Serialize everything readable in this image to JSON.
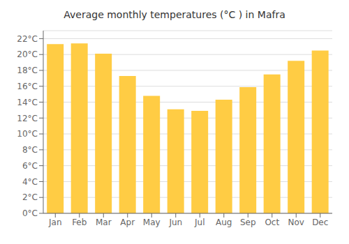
{
  "chart_data": {
    "type": "bar",
    "title": "Average monthly temperatures (°C ) in Mafra",
    "categories": [
      "Jan",
      "Feb",
      "Mar",
      "Apr",
      "May",
      "Jun",
      "Jul",
      "Aug",
      "Sep",
      "Oct",
      "Nov",
      "Dec"
    ],
    "values": [
      21.3,
      21.4,
      20.1,
      17.3,
      14.8,
      13.1,
      12.9,
      14.3,
      15.9,
      17.5,
      19.2,
      20.5
    ],
    "color": "#FFCC44",
    "ylim": [
      0,
      23
    ],
    "yticks": [
      {
        "value": 0,
        "label": "0°C"
      },
      {
        "value": 2,
        "label": "2°C"
      },
      {
        "value": 4,
        "label": "4°C"
      },
      {
        "value": 6,
        "label": "6°C"
      },
      {
        "value": 8,
        "label": "8°C"
      },
      {
        "value": 10,
        "label": "10°C"
      },
      {
        "value": 12,
        "label": "12°C"
      },
      {
        "value": 14,
        "label": "14°C"
      },
      {
        "value": 16,
        "label": "16°C"
      },
      {
        "value": 18,
        "label": "18°C"
      },
      {
        "value": 20,
        "label": "20°C"
      },
      {
        "value": 22,
        "label": "22°C"
      }
    ],
    "grid": true
  }
}
